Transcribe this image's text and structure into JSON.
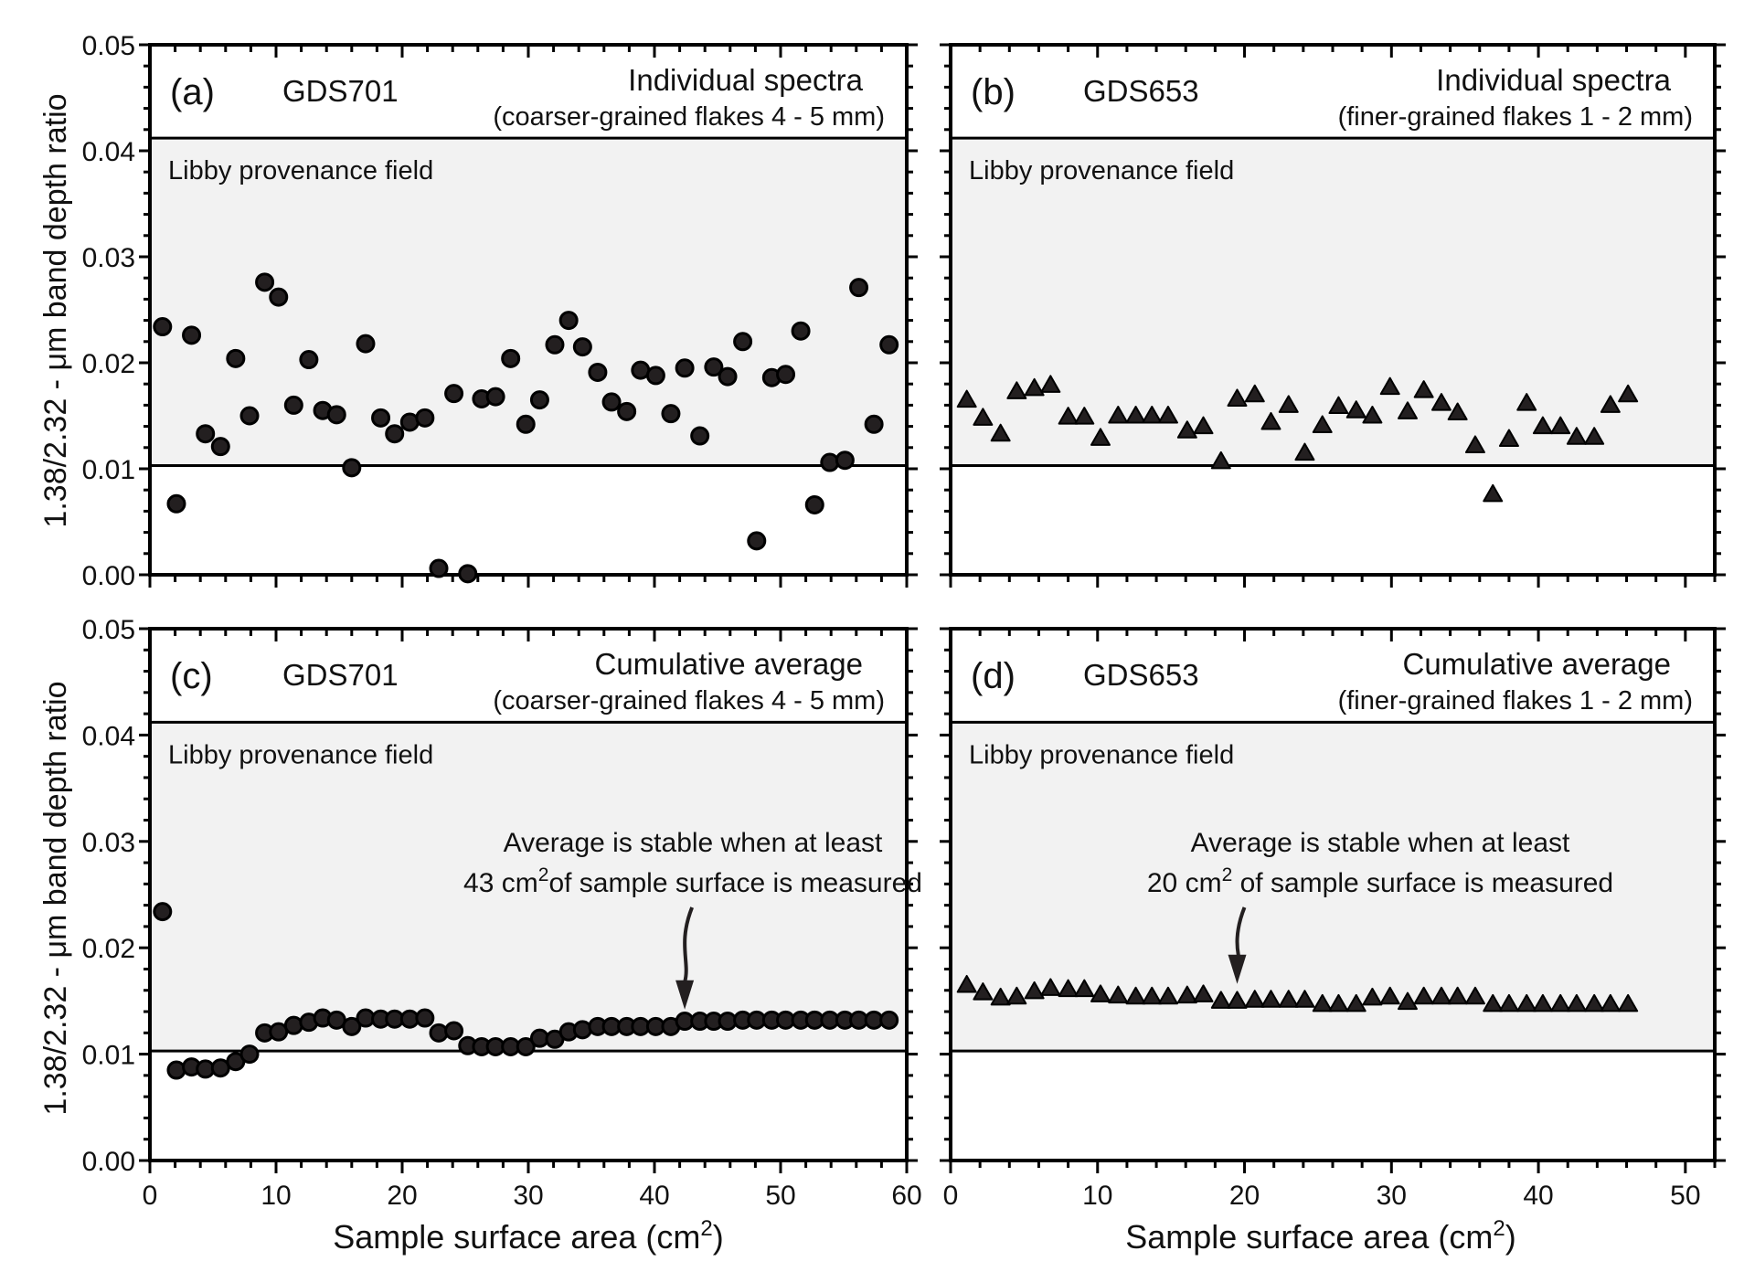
{
  "figure": {
    "ylabel": "1.38/2.32 - μm band depth ratio",
    "xlabel_prefix": "Sample surface area (cm",
    "xlabel_sup": "2",
    "xlabel_suffix": ")",
    "field_label": "Libby provenance field",
    "colors": {
      "field": "#f2f2f2",
      "marker": "#231f20",
      "marker_edge": "#000000",
      "axis": "#000000"
    }
  },
  "chart_data": [
    {
      "id": "a",
      "type": "scatter",
      "marker": "circle",
      "panel_label": "(a)",
      "sample": "GDS701",
      "title": "Individual spectra",
      "subtitle": "(coarser-grained flakes 4 - 5 mm)",
      "xlim": [
        0,
        60
      ],
      "ylim": [
        0,
        0.05
      ],
      "xticks": [
        "0",
        "10",
        "20",
        "30",
        "40",
        "50",
        "60"
      ],
      "yticks": [
        "0.00",
        "0.01",
        "0.02",
        "0.03",
        "0.04",
        "0.05"
      ],
      "field_range": [
        0.0103,
        0.0412
      ],
      "x": [
        1.0,
        2.1,
        3.3,
        4.4,
        5.6,
        6.8,
        7.9,
        9.1,
        10.2,
        11.4,
        12.6,
        13.7,
        14.8,
        16.0,
        17.1,
        18.3,
        19.4,
        20.6,
        21.8,
        22.9,
        24.1,
        25.2,
        26.3,
        27.4,
        28.6,
        29.8,
        30.9,
        32.1,
        33.2,
        34.3,
        35.5,
        36.6,
        37.8,
        38.9,
        40.1,
        41.3,
        42.4,
        43.6,
        44.7,
        45.8,
        47.0,
        48.1,
        49.3,
        50.4,
        51.6,
        52.7,
        53.9,
        55.1,
        56.2,
        57.4,
        58.6
      ],
      "y": [
        0.0234,
        0.0067,
        0.0226,
        0.0133,
        0.0121,
        0.0204,
        0.015,
        0.0276,
        0.0262,
        0.016,
        0.0203,
        0.0155,
        0.0151,
        0.0101,
        0.0218,
        0.0148,
        0.0133,
        0.0144,
        0.0148,
        0.0006,
        0.0171,
        0.0001,
        0.0166,
        0.0168,
        0.0204,
        0.0142,
        0.0165,
        0.0217,
        0.024,
        0.0215,
        0.0191,
        0.0163,
        0.0154,
        0.0193,
        0.0188,
        0.0152,
        0.0195,
        0.0131,
        0.0196,
        0.0187,
        0.022,
        0.0032,
        0.0186,
        0.0189,
        0.023,
        0.0066,
        0.0106,
        0.0108,
        0.0271,
        0.0142,
        0.0217
      ]
    },
    {
      "id": "b",
      "type": "scatter",
      "marker": "triangle",
      "panel_label": "(b)",
      "sample": "GDS653",
      "title": "Individual spectra",
      "subtitle": "(finer-grained flakes 1 - 2 mm)",
      "xlim": [
        0,
        52
      ],
      "ylim": [
        0,
        0.05
      ],
      "xticks": [
        "0",
        "10",
        "20",
        "30",
        "40",
        "50"
      ],
      "yticks": [
        "0.00",
        "0.01",
        "0.02",
        "0.03",
        "0.04",
        "0.05"
      ],
      "field_range": [
        0.0103,
        0.0412
      ],
      "x": [
        1.1,
        2.2,
        3.4,
        4.5,
        5.7,
        6.8,
        8.0,
        9.1,
        10.2,
        11.4,
        12.6,
        13.7,
        14.8,
        16.1,
        17.2,
        18.4,
        19.5,
        20.7,
        21.8,
        23.0,
        24.1,
        25.3,
        26.4,
        27.6,
        28.7,
        29.9,
        31.1,
        32.2,
        33.4,
        34.5,
        35.7,
        36.9,
        38.0,
        39.2,
        40.3,
        41.5,
        42.6,
        43.8,
        44.9,
        46.1
      ],
      "y": [
        0.0165,
        0.0148,
        0.0133,
        0.0173,
        0.0176,
        0.0179,
        0.0149,
        0.0149,
        0.0129,
        0.015,
        0.015,
        0.015,
        0.015,
        0.0136,
        0.014,
        0.0107,
        0.0166,
        0.017,
        0.0144,
        0.016,
        0.0115,
        0.0141,
        0.0159,
        0.0155,
        0.015,
        0.0177,
        0.0154,
        0.0174,
        0.0162,
        0.0153,
        0.0122,
        0.0076,
        0.0128,
        0.0162,
        0.014,
        0.014,
        0.013,
        0.013,
        0.016,
        0.017
      ]
    },
    {
      "id": "c",
      "type": "scatter",
      "marker": "circle",
      "panel_label": "(c)",
      "sample": "GDS701",
      "title": "Cumulative average",
      "subtitle": "(coarser-grained flakes 4 - 5 mm)",
      "xlim": [
        0,
        60
      ],
      "ylim": [
        0,
        0.05
      ],
      "xticks": [
        "0",
        "10",
        "20",
        "30",
        "40",
        "50",
        "60"
      ],
      "yticks": [
        "0.00",
        "0.01",
        "0.02",
        "0.03",
        "0.04",
        "0.05"
      ],
      "field_range": [
        0.0103,
        0.0412
      ],
      "annotation": {
        "line1": "Average is stable when at least",
        "line2_prefix": "43 cm",
        "line2_sup": "2",
        "line2_suffix": "of sample surface is measured",
        "arrow_x": 42.4
      },
      "x": [
        1.0,
        2.1,
        3.3,
        4.4,
        5.6,
        6.8,
        7.9,
        9.1,
        10.2,
        11.4,
        12.6,
        13.7,
        14.8,
        16.0,
        17.1,
        18.3,
        19.4,
        20.6,
        21.8,
        22.9,
        24.1,
        25.2,
        26.3,
        27.4,
        28.6,
        29.8,
        30.9,
        32.1,
        33.2,
        34.3,
        35.5,
        36.6,
        37.8,
        38.9,
        40.1,
        41.3,
        42.4,
        43.6,
        44.7,
        45.8,
        47.0,
        48.1,
        49.3,
        50.4,
        51.6,
        52.7,
        53.9,
        55.1,
        56.2,
        57.4,
        58.6
      ],
      "y": [
        0.0234,
        0.0085,
        0.0088,
        0.0086,
        0.0087,
        0.0093,
        0.01,
        0.012,
        0.0121,
        0.0127,
        0.013,
        0.0134,
        0.0132,
        0.0126,
        0.0134,
        0.0133,
        0.0133,
        0.0133,
        0.0134,
        0.012,
        0.0122,
        0.0108,
        0.0107,
        0.0107,
        0.0107,
        0.0107,
        0.0115,
        0.0114,
        0.0121,
        0.0123,
        0.0126,
        0.0126,
        0.0126,
        0.0126,
        0.0126,
        0.0126,
        0.0131,
        0.0131,
        0.0131,
        0.0131,
        0.0132,
        0.0132,
        0.0132,
        0.0132,
        0.0132,
        0.0132,
        0.0132,
        0.0132,
        0.0132,
        0.0132,
        0.0132
      ]
    },
    {
      "id": "d",
      "type": "scatter",
      "marker": "triangle",
      "panel_label": "(d)",
      "sample": "GDS653",
      "title": "Cumulative average",
      "subtitle": "(finer-grained flakes 1 - 2 mm)",
      "xlim": [
        0,
        52
      ],
      "ylim": [
        0,
        0.05
      ],
      "xticks": [
        "0",
        "10",
        "20",
        "30",
        "40",
        "50"
      ],
      "yticks": [
        "0.00",
        "0.01",
        "0.02",
        "0.03",
        "0.04",
        "0.05"
      ],
      "field_range": [
        0.0103,
        0.0412
      ],
      "annotation": {
        "line1": "Average is stable when at least",
        "line2_prefix": "20 cm",
        "line2_sup": "2",
        "line2_suffix": " of sample surface is measured",
        "arrow_x": 19.5
      },
      "x": [
        1.1,
        2.2,
        3.4,
        4.5,
        5.7,
        6.8,
        8.0,
        9.1,
        10.2,
        11.4,
        12.6,
        13.7,
        14.8,
        16.1,
        17.2,
        18.4,
        19.5,
        20.7,
        21.8,
        23.0,
        24.1,
        25.3,
        26.4,
        27.6,
        28.7,
        29.9,
        31.1,
        32.2,
        33.4,
        34.5,
        35.7,
        36.9,
        38.0,
        39.2,
        40.3,
        41.5,
        42.6,
        43.8,
        44.9,
        46.1
      ],
      "y": [
        0.0165,
        0.0158,
        0.0153,
        0.0154,
        0.0159,
        0.0162,
        0.0161,
        0.0161,
        0.0156,
        0.0155,
        0.0154,
        0.0154,
        0.0154,
        0.0155,
        0.0156,
        0.015,
        0.015,
        0.0151,
        0.0151,
        0.0151,
        0.0151,
        0.0147,
        0.0147,
        0.0147,
        0.0153,
        0.0154,
        0.0149,
        0.0154,
        0.0154,
        0.0154,
        0.0154,
        0.0147,
        0.0147,
        0.0147,
        0.0147,
        0.0147,
        0.0147,
        0.0147,
        0.0147,
        0.0147
      ]
    }
  ]
}
